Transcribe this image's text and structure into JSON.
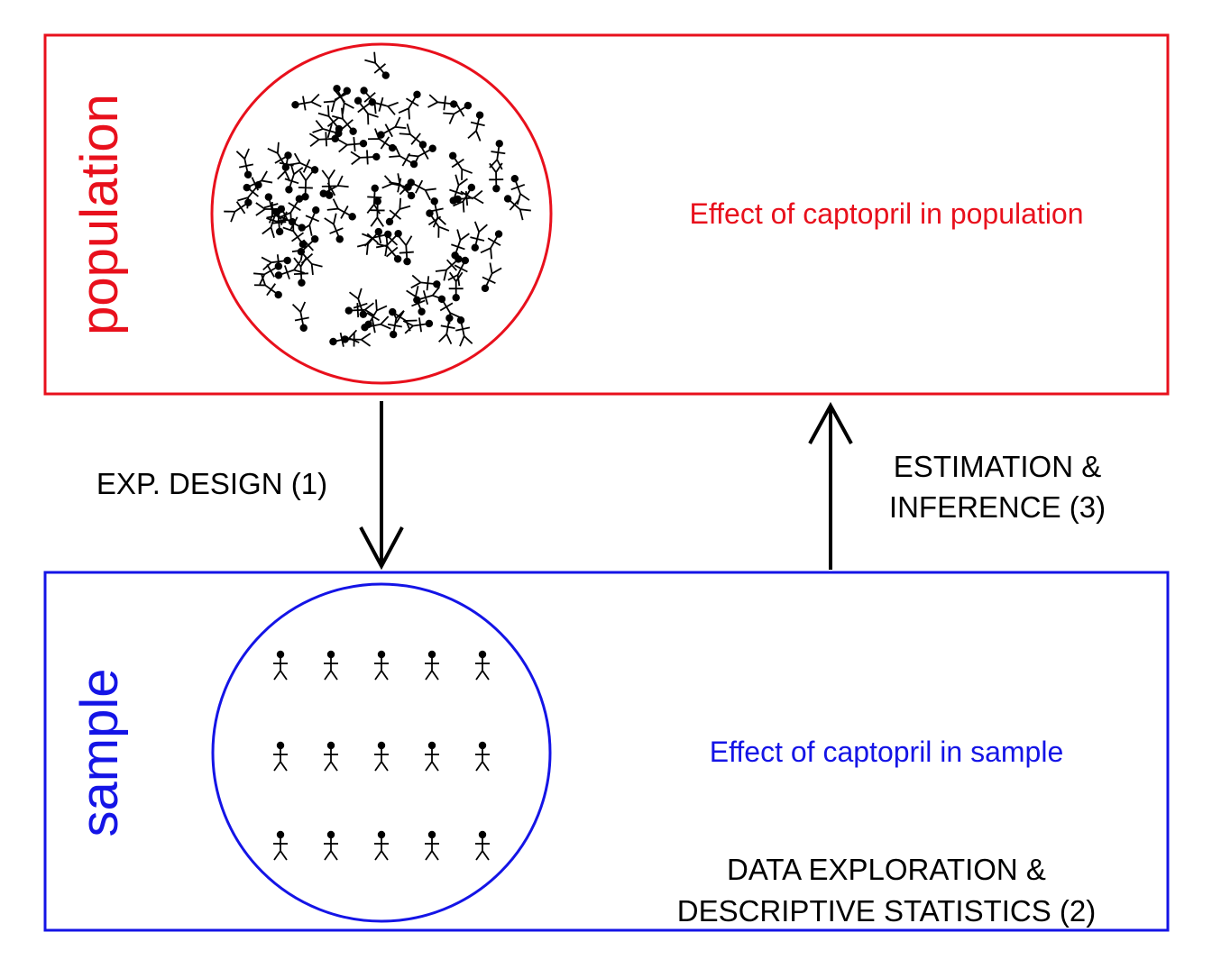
{
  "population": {
    "label": "population",
    "effect_text": "Effect of captopril in population",
    "color": "#e8101c"
  },
  "sample": {
    "label": "sample",
    "effect_text": "Effect of captopril in sample",
    "color": "#1414e6",
    "person_count": 15
  },
  "steps": {
    "design": "EXP. DESIGN (1)",
    "estimation_line1": "ESTIMATION &",
    "estimation_line2": "INFERENCE (3)",
    "exploration_line1": "DATA EXPLORATION &",
    "exploration_line2": "DESCRIPTIVE STATISTICS (2)"
  },
  "icons": {
    "person": "stick-figure-icon",
    "arrow_down": "arrow-down-icon",
    "arrow_up": "arrow-up-icon"
  }
}
